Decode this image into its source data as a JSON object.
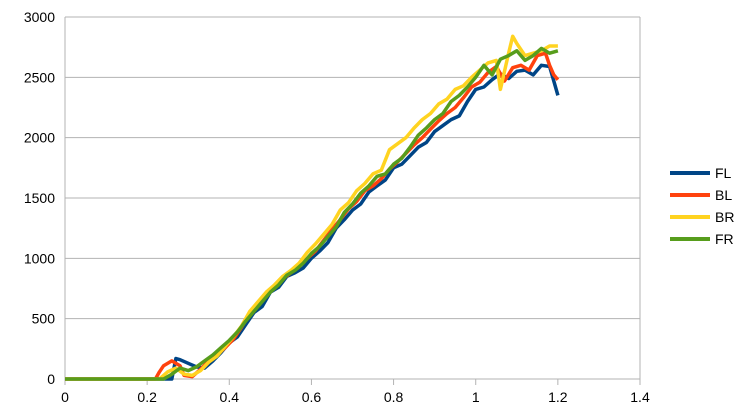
{
  "chart_data": {
    "type": "line",
    "title": "",
    "xlabel": "",
    "ylabel": "",
    "xlim": [
      0,
      1.4
    ],
    "ylim": [
      0,
      3000
    ],
    "x_ticks": [
      "0",
      "0.2",
      "0.4",
      "0.6",
      "0.8",
      "1",
      "1.2",
      "1.4"
    ],
    "y_ticks": [
      "0",
      "500",
      "1000",
      "1500",
      "2000",
      "2500",
      "3000"
    ],
    "grid": "horizontal",
    "legend_position": "right",
    "series": [
      {
        "name": "FL",
        "color": "#004586",
        "points": [
          [
            0,
            0
          ],
          [
            0.1,
            0
          ],
          [
            0.2,
            0
          ],
          [
            0.26,
            0
          ],
          [
            0.27,
            170
          ],
          [
            0.28,
            160
          ],
          [
            0.3,
            130
          ],
          [
            0.32,
            100
          ],
          [
            0.34,
            90
          ],
          [
            0.36,
            150
          ],
          [
            0.38,
            220
          ],
          [
            0.4,
            300
          ],
          [
            0.42,
            350
          ],
          [
            0.44,
            450
          ],
          [
            0.46,
            550
          ],
          [
            0.48,
            600
          ],
          [
            0.5,
            720
          ],
          [
            0.52,
            760
          ],
          [
            0.54,
            850
          ],
          [
            0.56,
            880
          ],
          [
            0.58,
            920
          ],
          [
            0.6,
            1000
          ],
          [
            0.62,
            1060
          ],
          [
            0.64,
            1130
          ],
          [
            0.66,
            1250
          ],
          [
            0.68,
            1320
          ],
          [
            0.7,
            1400
          ],
          [
            0.72,
            1450
          ],
          [
            0.74,
            1550
          ],
          [
            0.76,
            1600
          ],
          [
            0.78,
            1650
          ],
          [
            0.8,
            1750
          ],
          [
            0.82,
            1780
          ],
          [
            0.84,
            1850
          ],
          [
            0.86,
            1920
          ],
          [
            0.88,
            1960
          ],
          [
            0.9,
            2050
          ],
          [
            0.92,
            2100
          ],
          [
            0.94,
            2150
          ],
          [
            0.96,
            2180
          ],
          [
            0.98,
            2300
          ],
          [
            1.0,
            2400
          ],
          [
            1.02,
            2420
          ],
          [
            1.04,
            2480
          ],
          [
            1.06,
            2530
          ],
          [
            1.08,
            2490
          ],
          [
            1.1,
            2550
          ],
          [
            1.12,
            2560
          ],
          [
            1.14,
            2520
          ],
          [
            1.16,
            2600
          ],
          [
            1.18,
            2590
          ],
          [
            1.19,
            2470
          ],
          [
            1.2,
            2350
          ]
        ]
      },
      {
        "name": "BL",
        "color": "#ff420e",
        "points": [
          [
            0,
            0
          ],
          [
            0.1,
            0
          ],
          [
            0.2,
            0
          ],
          [
            0.22,
            0
          ],
          [
            0.23,
            60
          ],
          [
            0.24,
            110
          ],
          [
            0.26,
            150
          ],
          [
            0.28,
            110
          ],
          [
            0.29,
            30
          ],
          [
            0.31,
            20
          ],
          [
            0.33,
            80
          ],
          [
            0.35,
            150
          ],
          [
            0.37,
            200
          ],
          [
            0.39,
            260
          ],
          [
            0.41,
            330
          ],
          [
            0.43,
            430
          ],
          [
            0.45,
            540
          ],
          [
            0.47,
            610
          ],
          [
            0.49,
            700
          ],
          [
            0.51,
            760
          ],
          [
            0.53,
            830
          ],
          [
            0.55,
            880
          ],
          [
            0.57,
            930
          ],
          [
            0.59,
            1000
          ],
          [
            0.61,
            1060
          ],
          [
            0.63,
            1150
          ],
          [
            0.65,
            1240
          ],
          [
            0.67,
            1320
          ],
          [
            0.69,
            1410
          ],
          [
            0.71,
            1470
          ],
          [
            0.73,
            1560
          ],
          [
            0.75,
            1600
          ],
          [
            0.77,
            1660
          ],
          [
            0.79,
            1740
          ],
          [
            0.81,
            1800
          ],
          [
            0.83,
            1870
          ],
          [
            0.85,
            1940
          ],
          [
            0.87,
            2000
          ],
          [
            0.89,
            2070
          ],
          [
            0.91,
            2140
          ],
          [
            0.93,
            2200
          ],
          [
            0.95,
            2250
          ],
          [
            0.97,
            2330
          ],
          [
            0.99,
            2420
          ],
          [
            1.01,
            2460
          ],
          [
            1.03,
            2540
          ],
          [
            1.05,
            2590
          ],
          [
            1.07,
            2470
          ],
          [
            1.09,
            2580
          ],
          [
            1.11,
            2600
          ],
          [
            1.13,
            2560
          ],
          [
            1.15,
            2680
          ],
          [
            1.17,
            2700
          ],
          [
            1.18,
            2600
          ],
          [
            1.19,
            2520
          ],
          [
            1.2,
            2480
          ]
        ]
      },
      {
        "name": "BR",
        "color": "#ffd320",
        "points": [
          [
            0,
            0
          ],
          [
            0.1,
            0
          ],
          [
            0.2,
            0
          ],
          [
            0.23,
            0
          ],
          [
            0.25,
            60
          ],
          [
            0.27,
            90
          ],
          [
            0.29,
            40
          ],
          [
            0.31,
            30
          ],
          [
            0.33,
            70
          ],
          [
            0.35,
            140
          ],
          [
            0.37,
            190
          ],
          [
            0.39,
            270
          ],
          [
            0.41,
            350
          ],
          [
            0.43,
            440
          ],
          [
            0.45,
            560
          ],
          [
            0.47,
            640
          ],
          [
            0.49,
            720
          ],
          [
            0.51,
            780
          ],
          [
            0.53,
            850
          ],
          [
            0.55,
            900
          ],
          [
            0.57,
            960
          ],
          [
            0.59,
            1050
          ],
          [
            0.61,
            1120
          ],
          [
            0.63,
            1200
          ],
          [
            0.65,
            1280
          ],
          [
            0.67,
            1400
          ],
          [
            0.69,
            1460
          ],
          [
            0.71,
            1560
          ],
          [
            0.73,
            1620
          ],
          [
            0.75,
            1700
          ],
          [
            0.77,
            1730
          ],
          [
            0.79,
            1900
          ],
          [
            0.81,
            1950
          ],
          [
            0.83,
            2000
          ],
          [
            0.85,
            2080
          ],
          [
            0.87,
            2150
          ],
          [
            0.89,
            2200
          ],
          [
            0.91,
            2280
          ],
          [
            0.93,
            2320
          ],
          [
            0.95,
            2400
          ],
          [
            0.97,
            2430
          ],
          [
            0.99,
            2500
          ],
          [
            1.01,
            2560
          ],
          [
            1.03,
            2620
          ],
          [
            1.05,
            2640
          ],
          [
            1.06,
            2400
          ],
          [
            1.08,
            2700
          ],
          [
            1.09,
            2840
          ],
          [
            1.1,
            2780
          ],
          [
            1.12,
            2680
          ],
          [
            1.14,
            2700
          ],
          [
            1.16,
            2720
          ],
          [
            1.18,
            2760
          ],
          [
            1.2,
            2760
          ]
        ]
      },
      {
        "name": "FR",
        "color": "#579d1c",
        "points": [
          [
            0,
            0
          ],
          [
            0.1,
            0
          ],
          [
            0.2,
            0
          ],
          [
            0.24,
            0
          ],
          [
            0.26,
            40
          ],
          [
            0.28,
            90
          ],
          [
            0.3,
            70
          ],
          [
            0.32,
            100
          ],
          [
            0.34,
            150
          ],
          [
            0.36,
            200
          ],
          [
            0.38,
            260
          ],
          [
            0.4,
            320
          ],
          [
            0.42,
            390
          ],
          [
            0.44,
            480
          ],
          [
            0.46,
            560
          ],
          [
            0.48,
            640
          ],
          [
            0.5,
            720
          ],
          [
            0.52,
            780
          ],
          [
            0.54,
            860
          ],
          [
            0.56,
            900
          ],
          [
            0.58,
            960
          ],
          [
            0.6,
            1040
          ],
          [
            0.62,
            1100
          ],
          [
            0.64,
            1180
          ],
          [
            0.66,
            1260
          ],
          [
            0.68,
            1380
          ],
          [
            0.7,
            1450
          ],
          [
            0.72,
            1540
          ],
          [
            0.74,
            1600
          ],
          [
            0.76,
            1680
          ],
          [
            0.78,
            1700
          ],
          [
            0.8,
            1780
          ],
          [
            0.82,
            1830
          ],
          [
            0.84,
            1920
          ],
          [
            0.86,
            2020
          ],
          [
            0.88,
            2080
          ],
          [
            0.9,
            2150
          ],
          [
            0.92,
            2200
          ],
          [
            0.94,
            2300
          ],
          [
            0.96,
            2350
          ],
          [
            0.98,
            2420
          ],
          [
            1.0,
            2500
          ],
          [
            1.02,
            2600
          ],
          [
            1.04,
            2520
          ],
          [
            1.06,
            2650
          ],
          [
            1.08,
            2680
          ],
          [
            1.1,
            2720
          ],
          [
            1.12,
            2640
          ],
          [
            1.14,
            2680
          ],
          [
            1.16,
            2740
          ],
          [
            1.18,
            2700
          ],
          [
            1.2,
            2720
          ]
        ]
      }
    ]
  }
}
